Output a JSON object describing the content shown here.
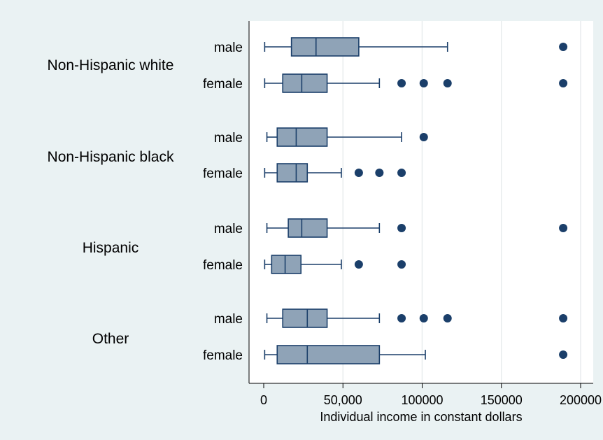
{
  "chart_data": {
    "type": "box",
    "orientation": "horizontal",
    "xlabel": "Individual income in constant dollars",
    "xlim": [
      -10000,
      210000
    ],
    "xticks": [
      {
        "value": 0,
        "label": "0"
      },
      {
        "value": 50000,
        "label": "50,000"
      },
      {
        "value": 100000,
        "label": "100000"
      },
      {
        "value": 150000,
        "label": "150000"
      },
      {
        "value": 200000,
        "label": "200000"
      }
    ],
    "grid": true,
    "colors": {
      "background": "#eaf2f3",
      "plot_background": "#ffffff",
      "box_fill": "#8fa3b7",
      "box_stroke": "#1b3f6a",
      "outlier": "#1b3f6a",
      "grid": "#e8ecee"
    },
    "groups": [
      {
        "name": "Non-Hispanic white",
        "boxes": [
          {
            "label": "male",
            "whisker_low": 600,
            "q1": 17500,
            "median": 33000,
            "q3": 60000,
            "whisker_high": 116000,
            "outliers": [
              189000
            ]
          },
          {
            "label": "female",
            "whisker_low": 600,
            "q1": 12000,
            "median": 24000,
            "q3": 40000,
            "whisker_high": 73000,
            "outliers": [
              87000,
              101000,
              116000,
              189000
            ]
          }
        ]
      },
      {
        "name": "Non-Hispanic black",
        "boxes": [
          {
            "label": "male",
            "whisker_low": 2000,
            "q1": 8500,
            "median": 20500,
            "q3": 40000,
            "whisker_high": 87000,
            "outliers": [
              101000
            ]
          },
          {
            "label": "female",
            "whisker_low": 600,
            "q1": 8500,
            "median": 20500,
            "q3": 27500,
            "whisker_high": 49000,
            "outliers": [
              60000,
              73000,
              87000
            ]
          }
        ]
      },
      {
        "name": "Hispanic",
        "boxes": [
          {
            "label": "male",
            "whisker_low": 2000,
            "q1": 15500,
            "median": 24000,
            "q3": 40000,
            "whisker_high": 73000,
            "outliers": [
              87000,
              189000
            ]
          },
          {
            "label": "female",
            "whisker_low": 600,
            "q1": 5000,
            "median": 13500,
            "q3": 23500,
            "whisker_high": 49000,
            "outliers": [
              60000,
              87000
            ]
          }
        ]
      },
      {
        "name": "Other",
        "boxes": [
          {
            "label": "male",
            "whisker_low": 2000,
            "q1": 12000,
            "median": 27500,
            "q3": 40000,
            "whisker_high": 73000,
            "outliers": [
              87000,
              101000,
              116000,
              189000
            ]
          },
          {
            "label": "female",
            "whisker_low": 600,
            "q1": 8500,
            "median": 27500,
            "q3": 73000,
            "whisker_high": 102000,
            "outliers": [
              189000
            ]
          }
        ]
      }
    ]
  }
}
